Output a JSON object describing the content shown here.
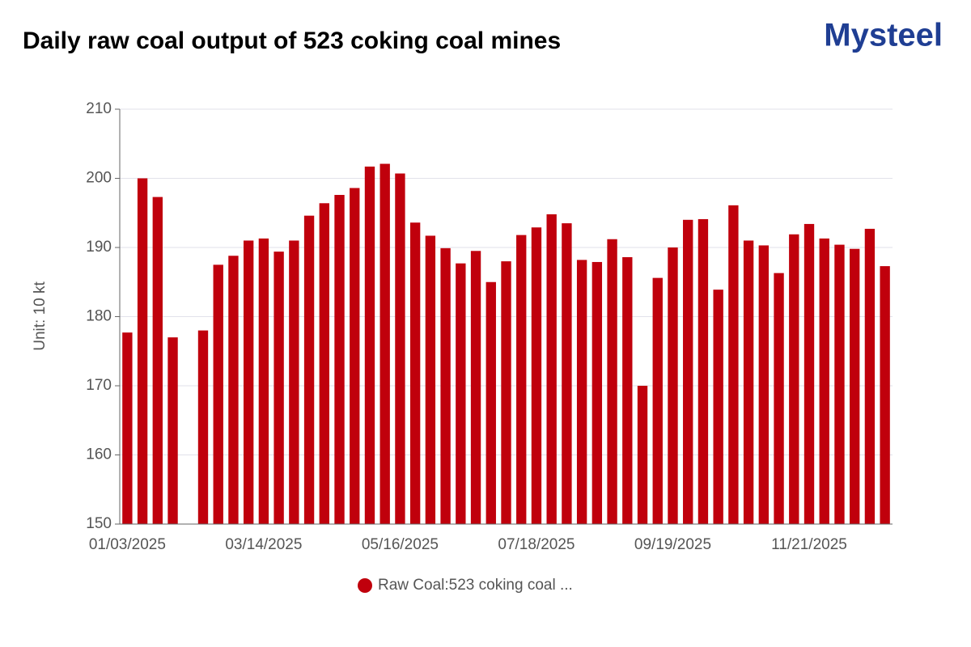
{
  "chart_data": {
    "type": "bar",
    "title": "Daily raw coal output of 523 coking coal mines",
    "logo": "Mysteel",
    "y_label": "Unit: 10 kt",
    "categories": [
      "01/03/2025",
      null,
      null,
      null,
      null,
      null,
      null,
      null,
      null,
      "03/14/2025",
      null,
      null,
      null,
      null,
      null,
      null,
      null,
      null,
      "05/16/2025",
      null,
      null,
      null,
      null,
      null,
      null,
      null,
      null,
      "07/18/2025",
      null,
      null,
      null,
      null,
      null,
      null,
      null,
      null,
      "09/19/2025",
      null,
      null,
      null,
      null,
      null,
      null,
      null,
      null,
      "11/21/2025",
      null,
      null,
      null,
      null,
      null
    ],
    "series": [
      {
        "name": "Raw Coal:523 coking coal ...",
        "color": "#c0000c",
        "values": [
          177.7,
          200,
          197.3,
          177,
          null,
          178,
          187.5,
          188.8,
          191,
          191.3,
          189.4,
          191,
          194.6,
          196.4,
          197.6,
          198.6,
          201.7,
          202.1,
          200.7,
          193.6,
          191.7,
          189.9,
          187.7,
          189.5,
          185,
          188,
          191.8,
          192.9,
          194.8,
          193.5,
          188.2,
          187.9,
          191.2,
          188.6,
          170,
          185.6,
          190,
          194,
          194.1,
          183.9,
          196.1,
          191,
          190.3,
          186.3,
          191.9,
          193.4,
          191.3,
          190.4,
          189.8,
          192.7,
          187.3
        ]
      }
    ],
    "ylim": [
      150,
      210
    ],
    "yticks": [
      150,
      160,
      170,
      180,
      190,
      200,
      210
    ],
    "grid": true
  }
}
